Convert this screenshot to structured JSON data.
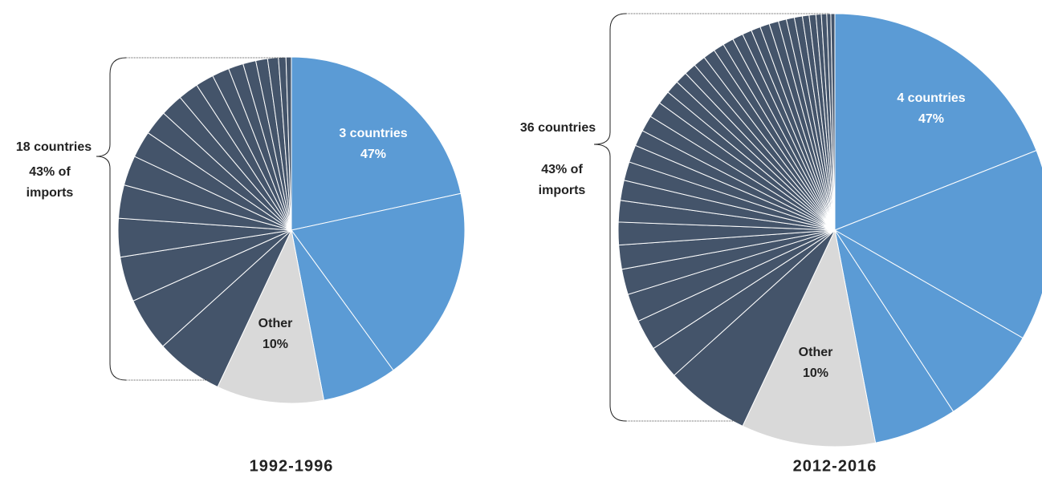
{
  "chart_data": [
    {
      "type": "pie",
      "title": "1992-1996",
      "groups": [
        {
          "name": "3 countries",
          "value": 47,
          "value_label": "47%",
          "color": "#5b9bd5",
          "values": [
            21.6,
            18.4,
            7
          ]
        },
        {
          "name": "Other",
          "value": 10,
          "value_label": "10%",
          "color": "#d9d9d9",
          "values": [
            10
          ]
        },
        {
          "name": "18 countries",
          "value": 43,
          "value_label": "43% of imports",
          "color": "#44546a",
          "values": [
            6.3,
            5,
            4.2,
            3.6,
            3.1,
            2.8,
            2.5,
            2.3,
            2.1,
            1.9,
            1.7,
            1.6,
            1.4,
            1.2,
            1.1,
            1.0,
            0.7,
            0.5
          ]
        }
      ]
    },
    {
      "type": "pie",
      "title": "2012-2016",
      "groups": [
        {
          "name": "4 countries",
          "value": 47,
          "value_label": "47%",
          "color": "#5b9bd5",
          "values": [
            19,
            14.3,
            7.5,
            6.2
          ]
        },
        {
          "name": "Other",
          "value": 10,
          "value_label": "10%",
          "color": "#d9d9d9",
          "values": [
            10
          ]
        },
        {
          "name": "36 countries",
          "value": 43,
          "value_label": "43% of imports",
          "color": "#44546a",
          "values": [
            6.3,
            2.5,
            2.3,
            2.1,
            1.9,
            1.8,
            1.7,
            1.6,
            1.5,
            1.4,
            1.3,
            1.2,
            1.2,
            1.2,
            1.0,
            1.0,
            0.9,
            0.9,
            0.9,
            0.9,
            0.8,
            0.8,
            0.8,
            0.7,
            0.7,
            0.7,
            0.7,
            0.6,
            0.6,
            0.6,
            0.5,
            0.5,
            0.4,
            0.4,
            0.3,
            0.3
          ]
        }
      ]
    }
  ]
}
